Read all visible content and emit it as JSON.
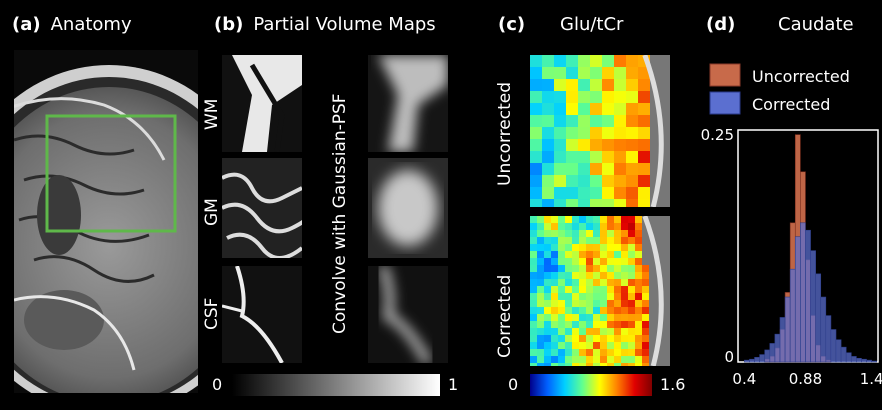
{
  "panels": {
    "a": {
      "letter": "(a)",
      "title": "Anatomy"
    },
    "b": {
      "letter": "(b)",
      "title": "Partial Volume Maps",
      "rows": [
        "WM",
        "GM",
        "CSF"
      ],
      "convolve_label": "Convolve with Gaussian-PSF",
      "colorbar": {
        "min": "0",
        "max": "1"
      }
    },
    "c": {
      "letter": "(c)",
      "title": "Glu/tCr",
      "rows": [
        "Uncorrected",
        "Corrected"
      ],
      "colorbar": {
        "min": "0",
        "max": "1.6"
      }
    },
    "d": {
      "letter": "(d)",
      "title": "Caudate"
    }
  },
  "colors": {
    "roi_box": "#5fb84a",
    "uncorrected": "#c86a4a",
    "corrected": "#5b6fd0"
  },
  "chart_data": {
    "type": "bar",
    "title": "Caudate",
    "legend": [
      "Uncorrected",
      "Corrected"
    ],
    "legend_position": "top",
    "ylim": [
      0,
      0.25
    ],
    "y_ticks": [
      "0",
      "0.25"
    ],
    "x_ticks": [
      "0.4",
      "0.88",
      "1.4"
    ],
    "xlim": [
      0.35,
      1.45
    ],
    "bin_width": 0.04,
    "bin_starts": [
      0.4,
      0.44,
      0.48,
      0.52,
      0.56,
      0.6,
      0.64,
      0.68,
      0.72,
      0.76,
      0.8,
      0.84,
      0.88,
      0.92,
      0.96,
      1.0,
      1.04,
      1.08,
      1.12,
      1.16,
      1.2,
      1.24,
      1.28,
      1.32,
      1.36,
      1.4
    ],
    "series": [
      {
        "name": "Uncorrected",
        "values": [
          0,
          0,
          0,
          0,
          0.003,
          0.006,
          0.015,
          0.035,
          0.075,
          0.15,
          0.245,
          0.205,
          0.11,
          0.05,
          0.018,
          0.006,
          0.002,
          0,
          0,
          0,
          0,
          0,
          0,
          0,
          0,
          0
        ]
      },
      {
        "name": "Corrected",
        "values": [
          0.002,
          0.003,
          0.005,
          0.008,
          0.013,
          0.02,
          0.03,
          0.048,
          0.07,
          0.1,
          0.135,
          0.15,
          0.142,
          0.12,
          0.095,
          0.07,
          0.05,
          0.035,
          0.024,
          0.016,
          0.01,
          0.006,
          0.004,
          0.003,
          0.002,
          0.001
        ]
      }
    ]
  }
}
